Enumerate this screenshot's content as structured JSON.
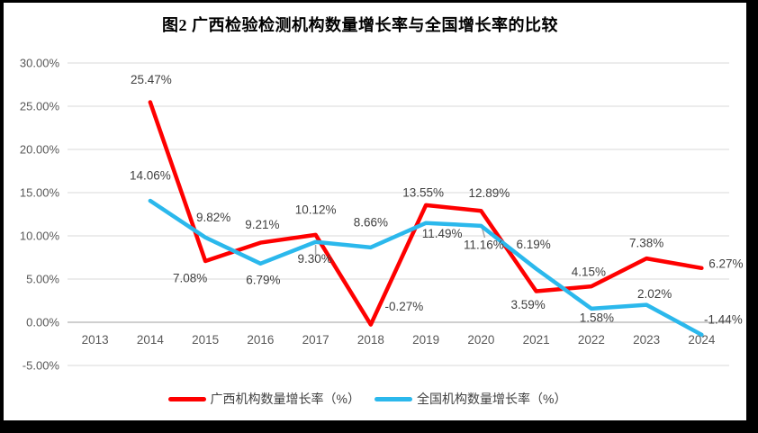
{
  "window": {
    "frame_color": "#000000",
    "panel_color": "#ffffff"
  },
  "chart_data": {
    "type": "line",
    "title": "图2 广西检验检测机构数量增长率与全国增长率的比较",
    "categories": [
      "2013",
      "2014",
      "2015",
      "2016",
      "2017",
      "2018",
      "2019",
      "2020",
      "2021",
      "2022",
      "2023",
      "2024"
    ],
    "series": [
      {
        "name": "广西机构数量增长率（%）",
        "color": "#fe0000",
        "values": [
          null,
          25.47,
          7.08,
          9.21,
          10.12,
          -0.27,
          13.55,
          12.89,
          3.59,
          4.15,
          7.38,
          6.27
        ],
        "point_labels": [
          "",
          "25.47%",
          "7.08%",
          "9.21%",
          "10.12%",
          "-0.27%",
          "13.55%",
          "12.89%",
          "3.59%",
          "4.15%",
          "7.38%",
          "6.27%"
        ]
      },
      {
        "name": "全国机构数量增长率（%）",
        "color": "#2bb8ec",
        "values": [
          null,
          14.06,
          9.82,
          6.79,
          9.3,
          8.66,
          11.49,
          11.16,
          6.19,
          1.58,
          2.02,
          -1.44
        ],
        "point_labels": [
          "",
          "14.06%",
          "9.82%",
          "6.79%",
          "9.30%",
          "8.66%",
          "11.49%",
          "11.16%",
          "6.19%",
          "1.58%",
          "2.02%",
          "-1.44%"
        ]
      }
    ],
    "y_axis": {
      "tick_labels": [
        "30.00%",
        "25.00%",
        "20.00%",
        "15.00%",
        "10.00%",
        "5.00%",
        "0.00%",
        "-5.00%"
      ],
      "tick_values": [
        30,
        25,
        20,
        15,
        10,
        5,
        0,
        -5
      ],
      "min": -5,
      "max": 30
    },
    "grid": true,
    "legend_position": "bottom",
    "colors": {
      "gridline": "#d9d9d9",
      "zero_axis": "#bfbfbf",
      "tick_label": "#595959",
      "data_label": "#404040",
      "title": "#000000",
      "leader": "#a6a6a6"
    }
  }
}
